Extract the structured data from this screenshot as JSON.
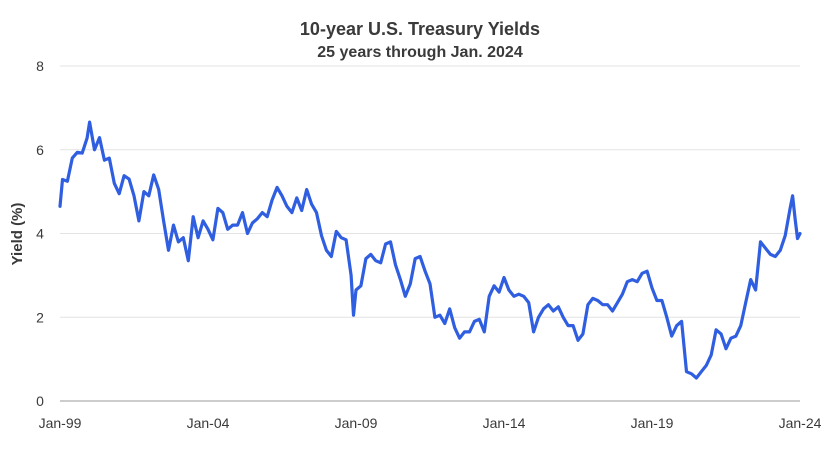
{
  "chart_data": {
    "type": "line",
    "title": "10-year U.S. Treasury Yields",
    "subtitle": "25 years through Jan. 2024",
    "ylabel": "Yield (%)",
    "xlabel": "",
    "ylim": [
      0,
      8
    ],
    "yticks": [
      0,
      2,
      4,
      6,
      8
    ],
    "xlim": [
      "1999-01",
      "2024-01"
    ],
    "xticks": [
      {
        "x": "1999-01",
        "label": "Jan-99"
      },
      {
        "x": "2004-01",
        "label": "Jan-04"
      },
      {
        "x": "2009-01",
        "label": "Jan-09"
      },
      {
        "x": "2014-01",
        "label": "Jan-14"
      },
      {
        "x": "2019-01",
        "label": "Jan-19"
      },
      {
        "x": "2024-01",
        "label": "Jan-24"
      }
    ],
    "grid": true,
    "line_color": "#2f5fe0",
    "series": [
      {
        "points": [
          [
            "1999-01",
            4.65
          ],
          [
            "1999-02",
            5.29
          ],
          [
            "1999-04",
            5.25
          ],
          [
            "1999-06",
            5.8
          ],
          [
            "1999-08",
            5.94
          ],
          [
            "1999-10",
            5.92
          ],
          [
            "1999-12",
            6.28
          ],
          [
            "2000-01",
            6.66
          ],
          [
            "2000-03",
            6.0
          ],
          [
            "2000-05",
            6.29
          ],
          [
            "2000-07",
            5.75
          ],
          [
            "2000-09",
            5.8
          ],
          [
            "2000-11",
            5.2
          ],
          [
            "2001-01",
            4.95
          ],
          [
            "2001-03",
            5.38
          ],
          [
            "2001-05",
            5.3
          ],
          [
            "2001-07",
            4.9
          ],
          [
            "2001-09",
            4.3
          ],
          [
            "2001-11",
            5.0
          ],
          [
            "2002-01",
            4.9
          ],
          [
            "2002-03",
            5.4
          ],
          [
            "2002-05",
            5.05
          ],
          [
            "2002-07",
            4.3
          ],
          [
            "2002-09",
            3.6
          ],
          [
            "2002-11",
            4.2
          ],
          [
            "2003-01",
            3.8
          ],
          [
            "2003-03",
            3.9
          ],
          [
            "2003-05",
            3.35
          ],
          [
            "2003-07",
            4.4
          ],
          [
            "2003-09",
            3.9
          ],
          [
            "2003-11",
            4.3
          ],
          [
            "2004-01",
            4.1
          ],
          [
            "2004-03",
            3.85
          ],
          [
            "2004-05",
            4.6
          ],
          [
            "2004-07",
            4.5
          ],
          [
            "2004-09",
            4.1
          ],
          [
            "2004-11",
            4.2
          ],
          [
            "2005-01",
            4.2
          ],
          [
            "2005-03",
            4.5
          ],
          [
            "2005-05",
            4.0
          ],
          [
            "2005-07",
            4.25
          ],
          [
            "2005-09",
            4.35
          ],
          [
            "2005-11",
            4.5
          ],
          [
            "2006-01",
            4.4
          ],
          [
            "2006-03",
            4.8
          ],
          [
            "2006-05",
            5.1
          ],
          [
            "2006-07",
            4.9
          ],
          [
            "2006-09",
            4.65
          ],
          [
            "2006-11",
            4.5
          ],
          [
            "2007-01",
            4.85
          ],
          [
            "2007-03",
            4.55
          ],
          [
            "2007-05",
            5.05
          ],
          [
            "2007-07",
            4.7
          ],
          [
            "2007-09",
            4.5
          ],
          [
            "2007-11",
            3.95
          ],
          [
            "2008-01",
            3.6
          ],
          [
            "2008-03",
            3.45
          ],
          [
            "2008-05",
            4.05
          ],
          [
            "2008-07",
            3.9
          ],
          [
            "2008-09",
            3.85
          ],
          [
            "2008-11",
            3.0
          ],
          [
            "2008-12",
            2.05
          ],
          [
            "2009-01",
            2.65
          ],
          [
            "2009-03",
            2.75
          ],
          [
            "2009-05",
            3.4
          ],
          [
            "2009-07",
            3.5
          ],
          [
            "2009-09",
            3.35
          ],
          [
            "2009-11",
            3.3
          ],
          [
            "2010-01",
            3.75
          ],
          [
            "2010-03",
            3.8
          ],
          [
            "2010-05",
            3.25
          ],
          [
            "2010-07",
            2.9
          ],
          [
            "2010-09",
            2.5
          ],
          [
            "2010-11",
            2.8
          ],
          [
            "2011-01",
            3.4
          ],
          [
            "2011-03",
            3.45
          ],
          [
            "2011-05",
            3.1
          ],
          [
            "2011-07",
            2.8
          ],
          [
            "2011-09",
            2.0
          ],
          [
            "2011-11",
            2.05
          ],
          [
            "2012-01",
            1.85
          ],
          [
            "2012-03",
            2.2
          ],
          [
            "2012-05",
            1.75
          ],
          [
            "2012-07",
            1.5
          ],
          [
            "2012-09",
            1.65
          ],
          [
            "2012-11",
            1.65
          ],
          [
            "2013-01",
            1.9
          ],
          [
            "2013-03",
            1.95
          ],
          [
            "2013-05",
            1.65
          ],
          [
            "2013-07",
            2.5
          ],
          [
            "2013-09",
            2.75
          ],
          [
            "2013-11",
            2.6
          ],
          [
            "2014-01",
            2.95
          ],
          [
            "2014-03",
            2.65
          ],
          [
            "2014-05",
            2.5
          ],
          [
            "2014-07",
            2.55
          ],
          [
            "2014-09",
            2.5
          ],
          [
            "2014-11",
            2.35
          ],
          [
            "2015-01",
            1.65
          ],
          [
            "2015-03",
            2.0
          ],
          [
            "2015-05",
            2.2
          ],
          [
            "2015-07",
            2.3
          ],
          [
            "2015-09",
            2.15
          ],
          [
            "2015-11",
            2.25
          ],
          [
            "2016-01",
            2.0
          ],
          [
            "2016-03",
            1.8
          ],
          [
            "2016-05",
            1.8
          ],
          [
            "2016-07",
            1.45
          ],
          [
            "2016-09",
            1.6
          ],
          [
            "2016-11",
            2.3
          ],
          [
            "2017-01",
            2.45
          ],
          [
            "2017-03",
            2.4
          ],
          [
            "2017-05",
            2.3
          ],
          [
            "2017-07",
            2.3
          ],
          [
            "2017-09",
            2.15
          ],
          [
            "2017-11",
            2.35
          ],
          [
            "2018-01",
            2.55
          ],
          [
            "2018-03",
            2.85
          ],
          [
            "2018-05",
            2.9
          ],
          [
            "2018-07",
            2.85
          ],
          [
            "2018-09",
            3.05
          ],
          [
            "2018-11",
            3.1
          ],
          [
            "2019-01",
            2.7
          ],
          [
            "2019-03",
            2.4
          ],
          [
            "2019-05",
            2.4
          ],
          [
            "2019-07",
            2.0
          ],
          [
            "2019-09",
            1.55
          ],
          [
            "2019-11",
            1.8
          ],
          [
            "2020-01",
            1.9
          ],
          [
            "2020-03",
            0.7
          ],
          [
            "2020-05",
            0.65
          ],
          [
            "2020-07",
            0.55
          ],
          [
            "2020-09",
            0.7
          ],
          [
            "2020-11",
            0.85
          ],
          [
            "2021-01",
            1.1
          ],
          [
            "2021-03",
            1.7
          ],
          [
            "2021-05",
            1.6
          ],
          [
            "2021-07",
            1.25
          ],
          [
            "2021-09",
            1.5
          ],
          [
            "2021-11",
            1.55
          ],
          [
            "2022-01",
            1.8
          ],
          [
            "2022-03",
            2.35
          ],
          [
            "2022-05",
            2.9
          ],
          [
            "2022-07",
            2.65
          ],
          [
            "2022-09",
            3.8
          ],
          [
            "2022-11",
            3.65
          ],
          [
            "2023-01",
            3.5
          ],
          [
            "2023-03",
            3.45
          ],
          [
            "2023-05",
            3.6
          ],
          [
            "2023-07",
            3.95
          ],
          [
            "2023-09",
            4.6
          ],
          [
            "2023-10",
            4.9
          ],
          [
            "2023-11",
            4.35
          ],
          [
            "2023-12",
            3.88
          ],
          [
            "2024-01",
            4.0
          ]
        ]
      }
    ]
  }
}
